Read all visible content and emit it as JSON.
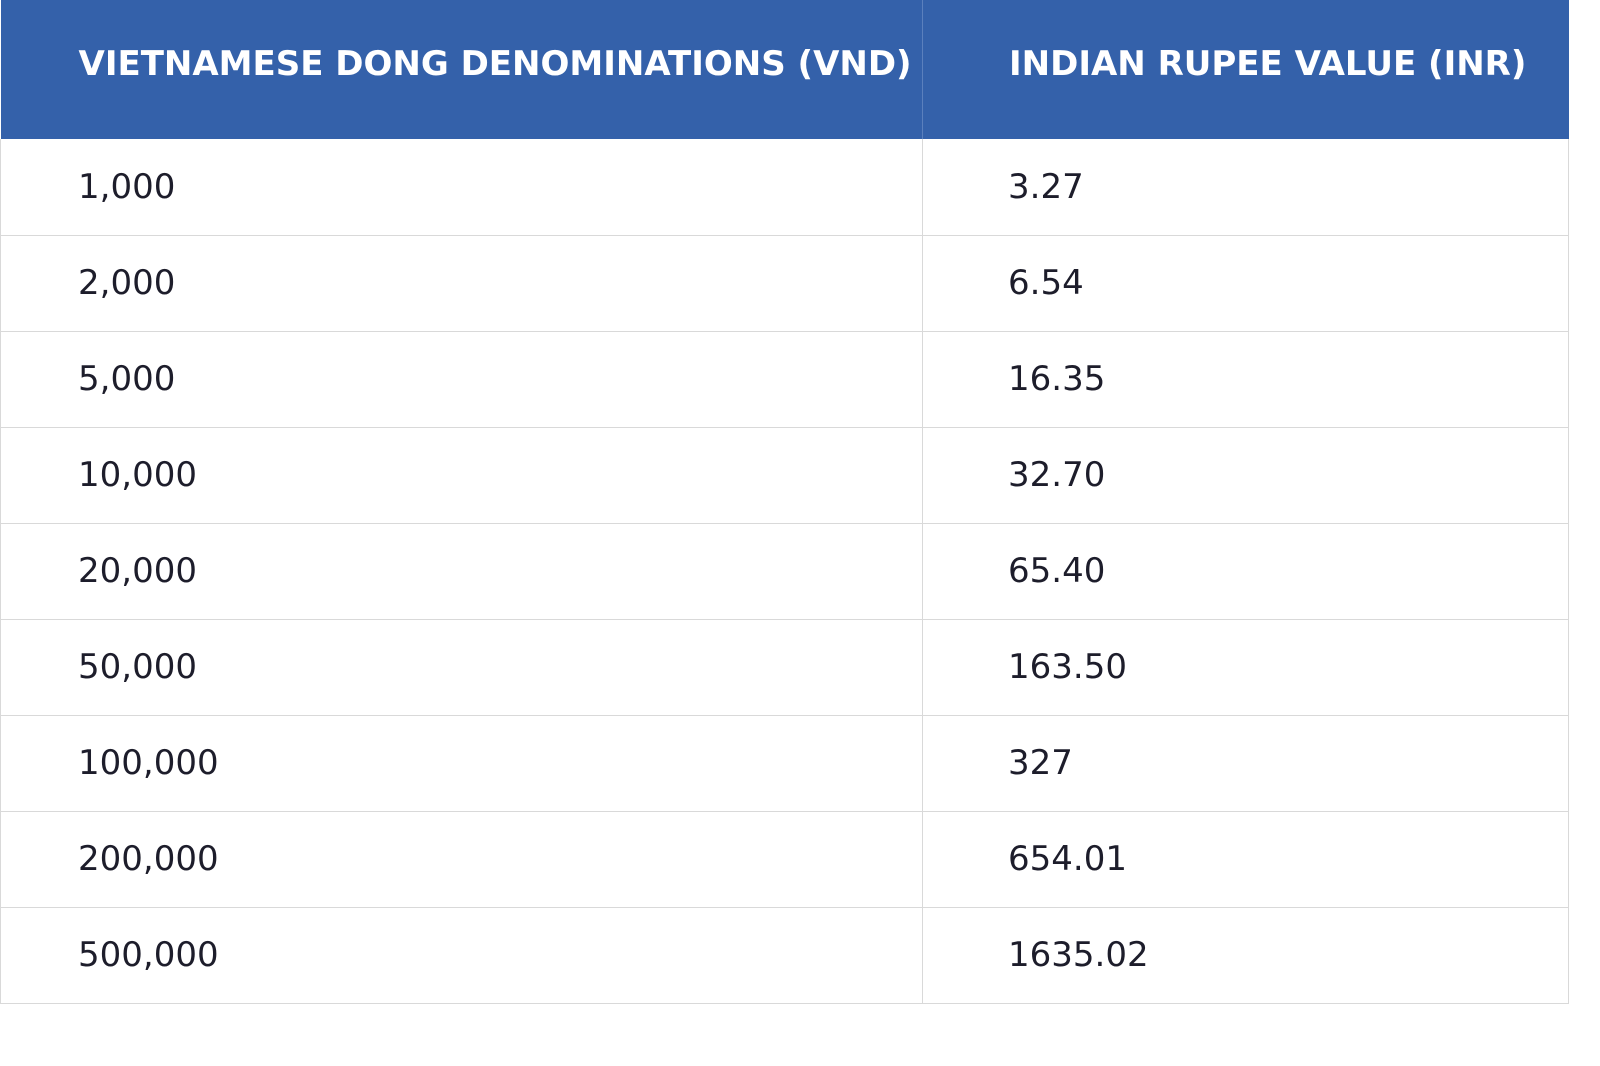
{
  "table": {
    "headers": {
      "vnd": "VIETNAMESE DONG DENOMINATIONS (VND)",
      "inr": "INDIAN RUPEE VALUE (INR)"
    },
    "rows": [
      {
        "vnd": "1,000",
        "inr": "3.27"
      },
      {
        "vnd": "2,000",
        "inr": "6.54"
      },
      {
        "vnd": "5,000",
        "inr": "16.35"
      },
      {
        "vnd": "10,000",
        "inr": "32.70"
      },
      {
        "vnd": "20,000",
        "inr": "65.40"
      },
      {
        "vnd": "50,000",
        "inr": "163.50"
      },
      {
        "vnd": "100,000",
        "inr": "327"
      },
      {
        "vnd": "200,000",
        "inr": "654.01"
      },
      {
        "vnd": "500,000",
        "inr": "1635.02"
      }
    ]
  },
  "colors": {
    "header_bg": "#3461aa",
    "header_text": "#ffffff",
    "body_text": "#1d1d2b",
    "grid_line": "#d9d9d9"
  }
}
